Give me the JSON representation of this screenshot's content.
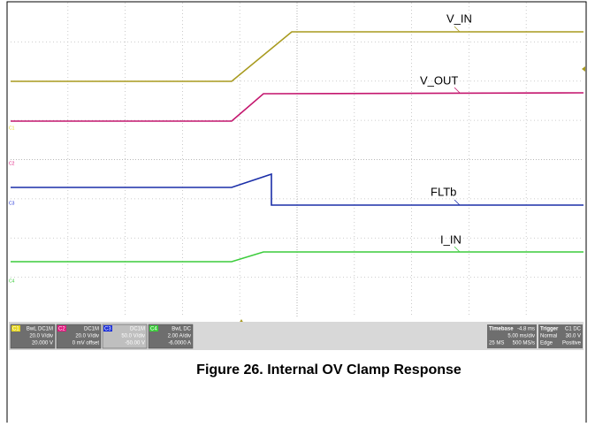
{
  "traces": [
    {
      "label": "V_IN",
      "color": "#a89a1e"
    },
    {
      "label": "V_OUT",
      "color": "#c4166e"
    },
    {
      "label": "FLTb",
      "color": "#1a2ea8"
    },
    {
      "label": "I_IN",
      "color": "#3ccc3c"
    }
  ],
  "channels": [
    {
      "name": "C1",
      "coupling": "BwL DC1M",
      "scale": "20.0 V/div",
      "offset": "20.000 V",
      "color": "#e6d61e"
    },
    {
      "name": "C2",
      "coupling": "DC1M",
      "scale": "20.0 V/div",
      "offset": "0 mV offset",
      "color": "#e0187e"
    },
    {
      "name": "C3",
      "coupling": "DC1M",
      "scale": "50.0 V/div",
      "offset": "-50.00 V",
      "color": "#1a2ed8"
    },
    {
      "name": "C4",
      "coupling": "BwL DC",
      "scale": "2.00 A/div",
      "offset": "-6.0000 A",
      "color": "#3ccc3c"
    }
  ],
  "timebase": {
    "title": "Timebase",
    "delay": "-4.8 ms",
    "scale": "5.00 ms/div",
    "samples": "25 MS",
    "rate": "500 MS/s"
  },
  "trigger": {
    "title": "Trigger",
    "source": "C1 DC",
    "mode": "Normal",
    "level": "30.0 V",
    "type": "Edge",
    "slope": "Positive"
  },
  "caption": "Figure 26. Internal OV Clamp Response"
}
